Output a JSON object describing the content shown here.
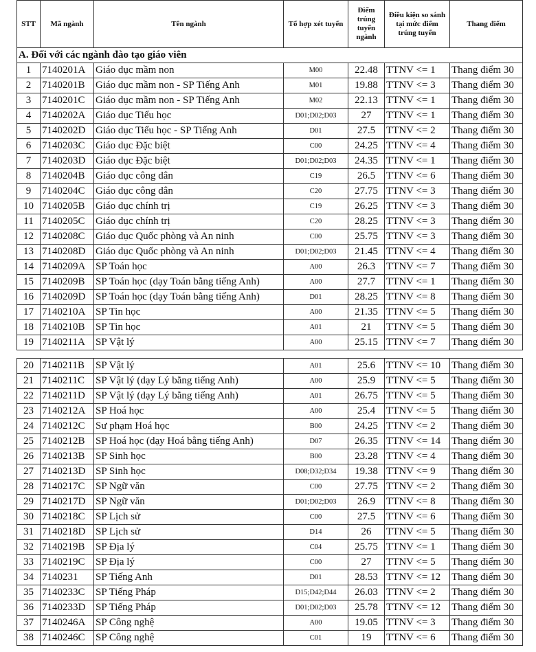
{
  "table": {
    "header": [
      "STT",
      "Mã ngành",
      "Tên ngành",
      "Tổ hợp xét tuyển",
      "Điểm trúng tuyển ngành",
      "Điều kiện so sánh tại mức điểm trúng tuyển",
      "Thang điểm"
    ],
    "section": "A. Đối với các ngành đào tạo giáo viên",
    "blocks": [
      [
        [
          "1",
          "7140201A",
          "Giáo dục mầm non",
          "M00",
          "22.48",
          "TTNV <= 1",
          "Thang điểm 30"
        ],
        [
          "2",
          "7140201B",
          "Giáo dục mầm non - SP Tiếng Anh",
          "M01",
          "19.88",
          "TTNV <= 3",
          "Thang điểm 30"
        ],
        [
          "3",
          "7140201C",
          "Giáo dục mầm non - SP Tiếng Anh",
          "M02",
          "22.13",
          "TTNV <= 1",
          "Thang điểm 30"
        ],
        [
          "4",
          "7140202A",
          "Giáo dục Tiểu học",
          "D01;D02;D03",
          "27",
          "TTNV <= 1",
          "Thang điểm 30"
        ],
        [
          "5",
          "7140202D",
          "Giáo dục Tiểu học - SP Tiếng Anh",
          "D01",
          "27.5",
          "TTNV <= 2",
          "Thang điểm 30"
        ],
        [
          "6",
          "7140203C",
          "Giáo dục Đặc biệt",
          "C00",
          "24.25",
          "TTNV <= 4",
          "Thang điểm 30"
        ],
        [
          "7",
          "7140203D",
          "Giáo dục Đặc biệt",
          "D01;D02;D03",
          "24.35",
          "TTNV <= 1",
          "Thang điểm 30"
        ],
        [
          "8",
          "7140204B",
          "Giáo dục công dân",
          "C19",
          "26.5",
          "TTNV <= 6",
          "Thang điểm 30"
        ],
        [
          "9",
          "7140204C",
          "Giáo dục công dân",
          "C20",
          "27.75",
          "TTNV <= 3",
          "Thang điểm 30"
        ],
        [
          "10",
          "7140205B",
          "Giáo dục chính trị",
          "C19",
          "26.25",
          "TTNV <= 3",
          "Thang điểm 30"
        ],
        [
          "11",
          "7140205C",
          "Giáo dục chính trị",
          "C20",
          "28.25",
          "TTNV <= 3",
          "Thang điểm 30"
        ],
        [
          "12",
          "7140208C",
          "Giáo dục Quốc phòng và An ninh",
          "C00",
          "25.75",
          "TTNV <= 3",
          "Thang điểm 30"
        ],
        [
          "13",
          "7140208D",
          "Giáo dục Quốc phòng và An ninh",
          "D01;D02;D03",
          "21.45",
          "TTNV <= 4",
          "Thang điểm 30"
        ],
        [
          "14",
          "7140209A",
          "SP Toán học",
          "A00",
          "26.3",
          "TTNV <= 7",
          "Thang điểm 30"
        ],
        [
          "15",
          "7140209B",
          "SP Toán học (dạy Toán bằng tiếng Anh)",
          "A00",
          "27.7",
          "TTNV <= 1",
          "Thang điểm 30"
        ],
        [
          "16",
          "7140209D",
          "SP Toán học (dạy Toán bằng tiếng Anh)",
          "D01",
          "28.25",
          "TTNV <= 8",
          "Thang điểm 30"
        ],
        [
          "17",
          "7140210A",
          "SP Tin học",
          "A00",
          "21.35",
          "TTNV <= 5",
          "Thang điểm 30"
        ],
        [
          "18",
          "7140210B",
          "SP Tin học",
          "A01",
          "21",
          "TTNV <= 5",
          "Thang điểm 30"
        ],
        [
          "19",
          "7140211A",
          "SP Vật lý",
          "A00",
          "25.15",
          "TTNV <= 7",
          "Thang điểm 30"
        ]
      ],
      [
        [
          "20",
          "7140211B",
          "SP Vật lý",
          "A01",
          "25.6",
          "TTNV <= 10",
          "Thang điểm 30"
        ],
        [
          "21",
          "7140211C",
          "SP Vật lý (dạy Lý bằng tiếng Anh)",
          "A00",
          "25.9",
          "TTNV <= 5",
          "Thang điểm 30"
        ],
        [
          "22",
          "7140211D",
          "SP Vật lý (dạy Lý bằng tiếng Anh)",
          "A01",
          "26.75",
          "TTNV <= 5",
          "Thang điểm 30"
        ],
        [
          "23",
          "7140212A",
          "SP Hoá học",
          "A00",
          "25.4",
          "TTNV <= 5",
          "Thang điểm 30"
        ],
        [
          "24",
          "7140212C",
          "Sư phạm Hoá học",
          "B00",
          "24.25",
          "TTNV <= 2",
          "Thang điểm 30"
        ],
        [
          "25",
          "7140212B",
          "SP Hoá học (dạy Hoá bằng tiếng Anh)",
          "D07",
          "26.35",
          "TTNV <= 14",
          "Thang điểm 30"
        ],
        [
          "26",
          "7140213B",
          "SP Sinh học",
          "B00",
          "23.28",
          "TTNV <= 4",
          "Thang điểm 30"
        ],
        [
          "27",
          "7140213D",
          "SP Sinh học",
          "D08;D32;D34",
          "19.38",
          "TTNV <= 9",
          "Thang điểm 30"
        ],
        [
          "28",
          "7140217C",
          "SP Ngữ văn",
          "C00",
          "27.75",
          "TTNV <= 2",
          "Thang điểm 30"
        ],
        [
          "29",
          "7140217D",
          "SP Ngữ văn",
          "D01;D02;D03",
          "26.9",
          "TTNV <= 8",
          "Thang điểm 30"
        ],
        [
          "30",
          "7140218C",
          "SP Lịch sử",
          "C00",
          "27.5",
          "TTNV <= 6",
          "Thang điểm 30"
        ],
        [
          "31",
          "7140218D",
          "SP Lịch sử",
          "D14",
          "26",
          "TTNV <= 5",
          "Thang điểm 30"
        ],
        [
          "32",
          "7140219B",
          "SP Địa lý",
          "C04",
          "25.75",
          "TTNV <= 1",
          "Thang điểm 30"
        ],
        [
          "33",
          "7140219C",
          "SP Địa lý",
          "C00",
          "27",
          "TTNV <= 5",
          "Thang điểm 30"
        ],
        [
          "34",
          "7140231",
          "SP Tiếng Anh",
          "D01",
          "28.53",
          "TTNV <= 12",
          "Thang điểm 30"
        ],
        [
          "35",
          "7140233C",
          "SP Tiếng Pháp",
          "D15;D42;D44",
          "26.03",
          "TTNV <= 2",
          "Thang điểm 30"
        ],
        [
          "36",
          "7140233D",
          "SP Tiếng Pháp",
          "D01;D02;D03",
          "25.78",
          "TTNV <= 12",
          "Thang điểm 30"
        ],
        [
          "37",
          "7140246A",
          "SP Công nghệ",
          "A00",
          "19.05",
          "TTNV <= 3",
          "Thang điểm 30"
        ],
        [
          "38",
          "7140246C",
          "SP Công nghệ",
          "C01",
          "19",
          "TTNV <= 6",
          "Thang điểm 30"
        ]
      ]
    ]
  }
}
